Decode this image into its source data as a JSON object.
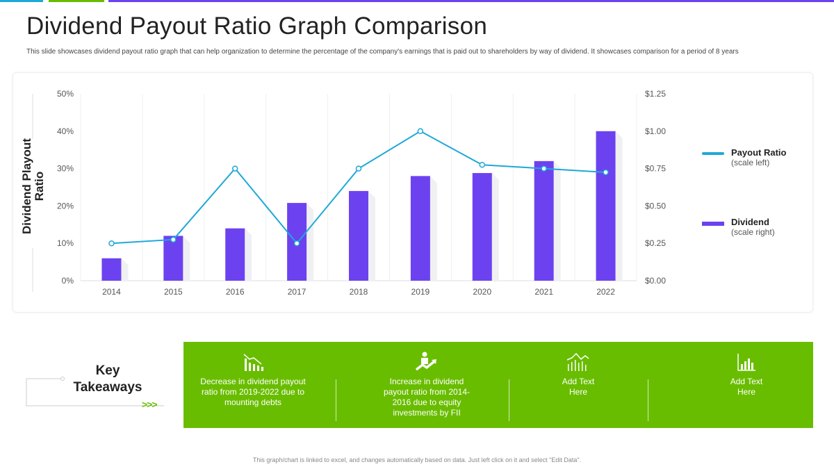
{
  "title": "Dividend Payout Ratio Graph Comparison",
  "subtitle": "This slide showcases dividend payout ratio graph that can help organization to determine the percentage of the company's earnings that is paid out to shareholders by way of dividend. It showcases comparison for a period of 8 years",
  "colors": {
    "bar": "#6c42f0",
    "line": "#1ea8d8",
    "green": "#69bd00",
    "accent_blue": "#1ea8d8",
    "accent_green": "#69bd00",
    "accent_purple": "#6c42f0"
  },
  "chart_data": {
    "type": "bar+line",
    "categories": [
      "2014",
      "2015",
      "2016",
      "2017",
      "2018",
      "2019",
      "2020",
      "2021",
      "2022"
    ],
    "ylabel": "Dividend Playout Ratio",
    "y_left": {
      "ticks": [
        "0%",
        "10%",
        "20%",
        "30%",
        "40%",
        "50%"
      ],
      "range": [
        0,
        50
      ]
    },
    "y_right": {
      "ticks": [
        "$0.00",
        "$0.25",
        "$0.50",
        "$0.75",
        "$1.00",
        "$1.25"
      ],
      "range": [
        0,
        1.25
      ]
    },
    "grid": "vertical",
    "legend_placement": "right",
    "series": [
      {
        "name": "Payout Ratio",
        "note": "(scale left)",
        "type": "line",
        "axis": "left",
        "values": [
          10,
          11,
          30,
          10,
          30,
          40,
          31,
          30,
          29
        ]
      },
      {
        "name": "Dividend",
        "note": "(scale right)",
        "type": "bar",
        "axis": "right",
        "values": [
          0.15,
          0.3,
          0.35,
          0.52,
          0.6,
          0.7,
          0.72,
          0.8,
          1.0
        ]
      }
    ]
  },
  "takeaways": {
    "title": "Key Takeaways",
    "arrows": ">>>",
    "items": [
      {
        "icon": "declining-chart-icon",
        "text": "Decrease in dividend payout ratio from 2019-2022 due to mounting debts"
      },
      {
        "icon": "rising-person-icon",
        "text": "Increase in dividend payout ratio from 2014-2016 due to equity investments by FII"
      },
      {
        "icon": "line-bar-chart-icon",
        "text": "Add Text Here"
      },
      {
        "icon": "bar-chart-icon",
        "text": "Add Text Here"
      }
    ]
  },
  "footer": "This graph/chart is linked to excel, and changes automatically based on data. Just left click on it and select \"Edit Data\"."
}
